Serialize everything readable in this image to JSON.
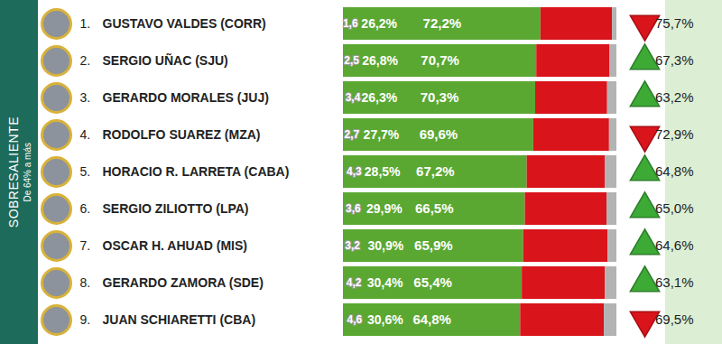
{
  "chart_data": {
    "type": "bar",
    "orientation": "horizontal",
    "stacked": true,
    "data_labels": true,
    "tick_labels": false,
    "side_label": "SOBRESALIENTE",
    "side_sublabel": "De 64% a más",
    "xlim": [
      0,
      100
    ],
    "ranks": [
      "1.",
      "2.",
      "3.",
      "4.",
      "5.",
      "6.",
      "7.",
      "8.",
      "9."
    ],
    "categories": [
      "GUSTAVO VALDES (CORR)",
      "SERGIO UÑAC (SJU)",
      "GERARDO MORALES (JUJ)",
      "RODOLFO SUAREZ (MZA)",
      "HORACIO R. LARRETA (CABA)",
      "SERGIO ZILIOTTO (LPA)",
      "OSCAR H. AHUAD (MIS)",
      "GERARDO ZAMORA (SDE)",
      "JUAN SCHIARETTI (CBA)"
    ],
    "series": [
      {
        "color": "#5aa832",
        "values": [
          72.2,
          70.7,
          70.3,
          69.6,
          67.2,
          66.5,
          65.9,
          65.4,
          64.8
        ],
        "value_labels": [
          "72,2%",
          "70,7%",
          "70,3%",
          "69,6%",
          "67,2%",
          "66,5%",
          "65,9%",
          "65,4%",
          "64,8%"
        ]
      },
      {
        "color": "#d9141b",
        "values": [
          26.2,
          26.8,
          26.3,
          27.7,
          28.5,
          29.9,
          30.9,
          30.4,
          30.6
        ],
        "value_labels": [
          "26,2%",
          "26,8%",
          "26,3%",
          "27,7%",
          "28,5%",
          "29,9%",
          "30,9%",
          "30,4%",
          "30,6%"
        ]
      },
      {
        "color": "#b3b3b3",
        "values": [
          1.6,
          2.5,
          3.4,
          2.7,
          4.3,
          3.6,
          3.2,
          4.2,
          4.6
        ],
        "value_labels": [
          "1,6",
          "2,5",
          "3,4",
          "2,7",
          "4,3",
          "3,6",
          "3,2",
          "4,2",
          "4,6"
        ]
      }
    ],
    "previous_values": [
      75.7,
      67.3,
      63.2,
      72.9,
      64.8,
      65.0,
      64.6,
      63.1,
      69.5
    ],
    "previous_value_labels": [
      "75,7%",
      "67,3%",
      "63,2%",
      "72,9%",
      "64,8%",
      "65,0%",
      "64,6%",
      "63,1%",
      "69,5%"
    ]
  }
}
